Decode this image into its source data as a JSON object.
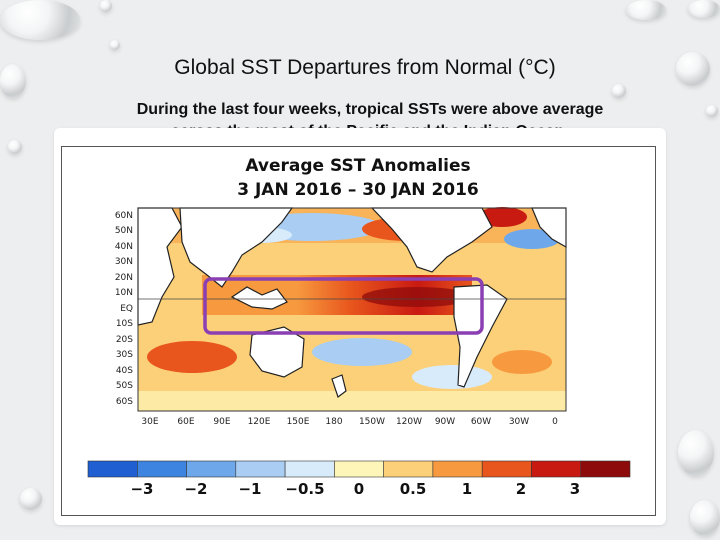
{
  "slide": {
    "title": "Global SST Departures from Normal (°C)",
    "subtitle_line1": "During the last four weeks, tropical SSTs were above average",
    "subtitle_line2": "across the most of the Pacific and the Indian Ocean."
  },
  "map": {
    "title": "Average SST Anomalies",
    "date_range": "3 JAN 2016 – 30 JAN 2016",
    "lat_labels": [
      "60N",
      "50N",
      "40N",
      "30N",
      "20N",
      "10N",
      "EQ",
      "10S",
      "20S",
      "30S",
      "40S",
      "50S",
      "60S"
    ],
    "lon_labels": [
      "30E",
      "60E",
      "90E",
      "120E",
      "150E",
      "180",
      "150W",
      "120W",
      "90W",
      "60W",
      "30W",
      "0"
    ],
    "highlight_color": "#8a3fb2"
  },
  "colorbar": {
    "labels": [
      "−3",
      "−2",
      "−1",
      "−0.5",
      "0",
      "0.5",
      "1",
      "2",
      "3"
    ],
    "colors": [
      "#1f5fd1",
      "#3d84e0",
      "#6fa8ea",
      "#a9cdf3",
      "#d8ebfa",
      "#fdf6b8",
      "#fbd079",
      "#f79a3f",
      "#e8561d",
      "#c91a12",
      "#8e0b0b"
    ]
  }
}
